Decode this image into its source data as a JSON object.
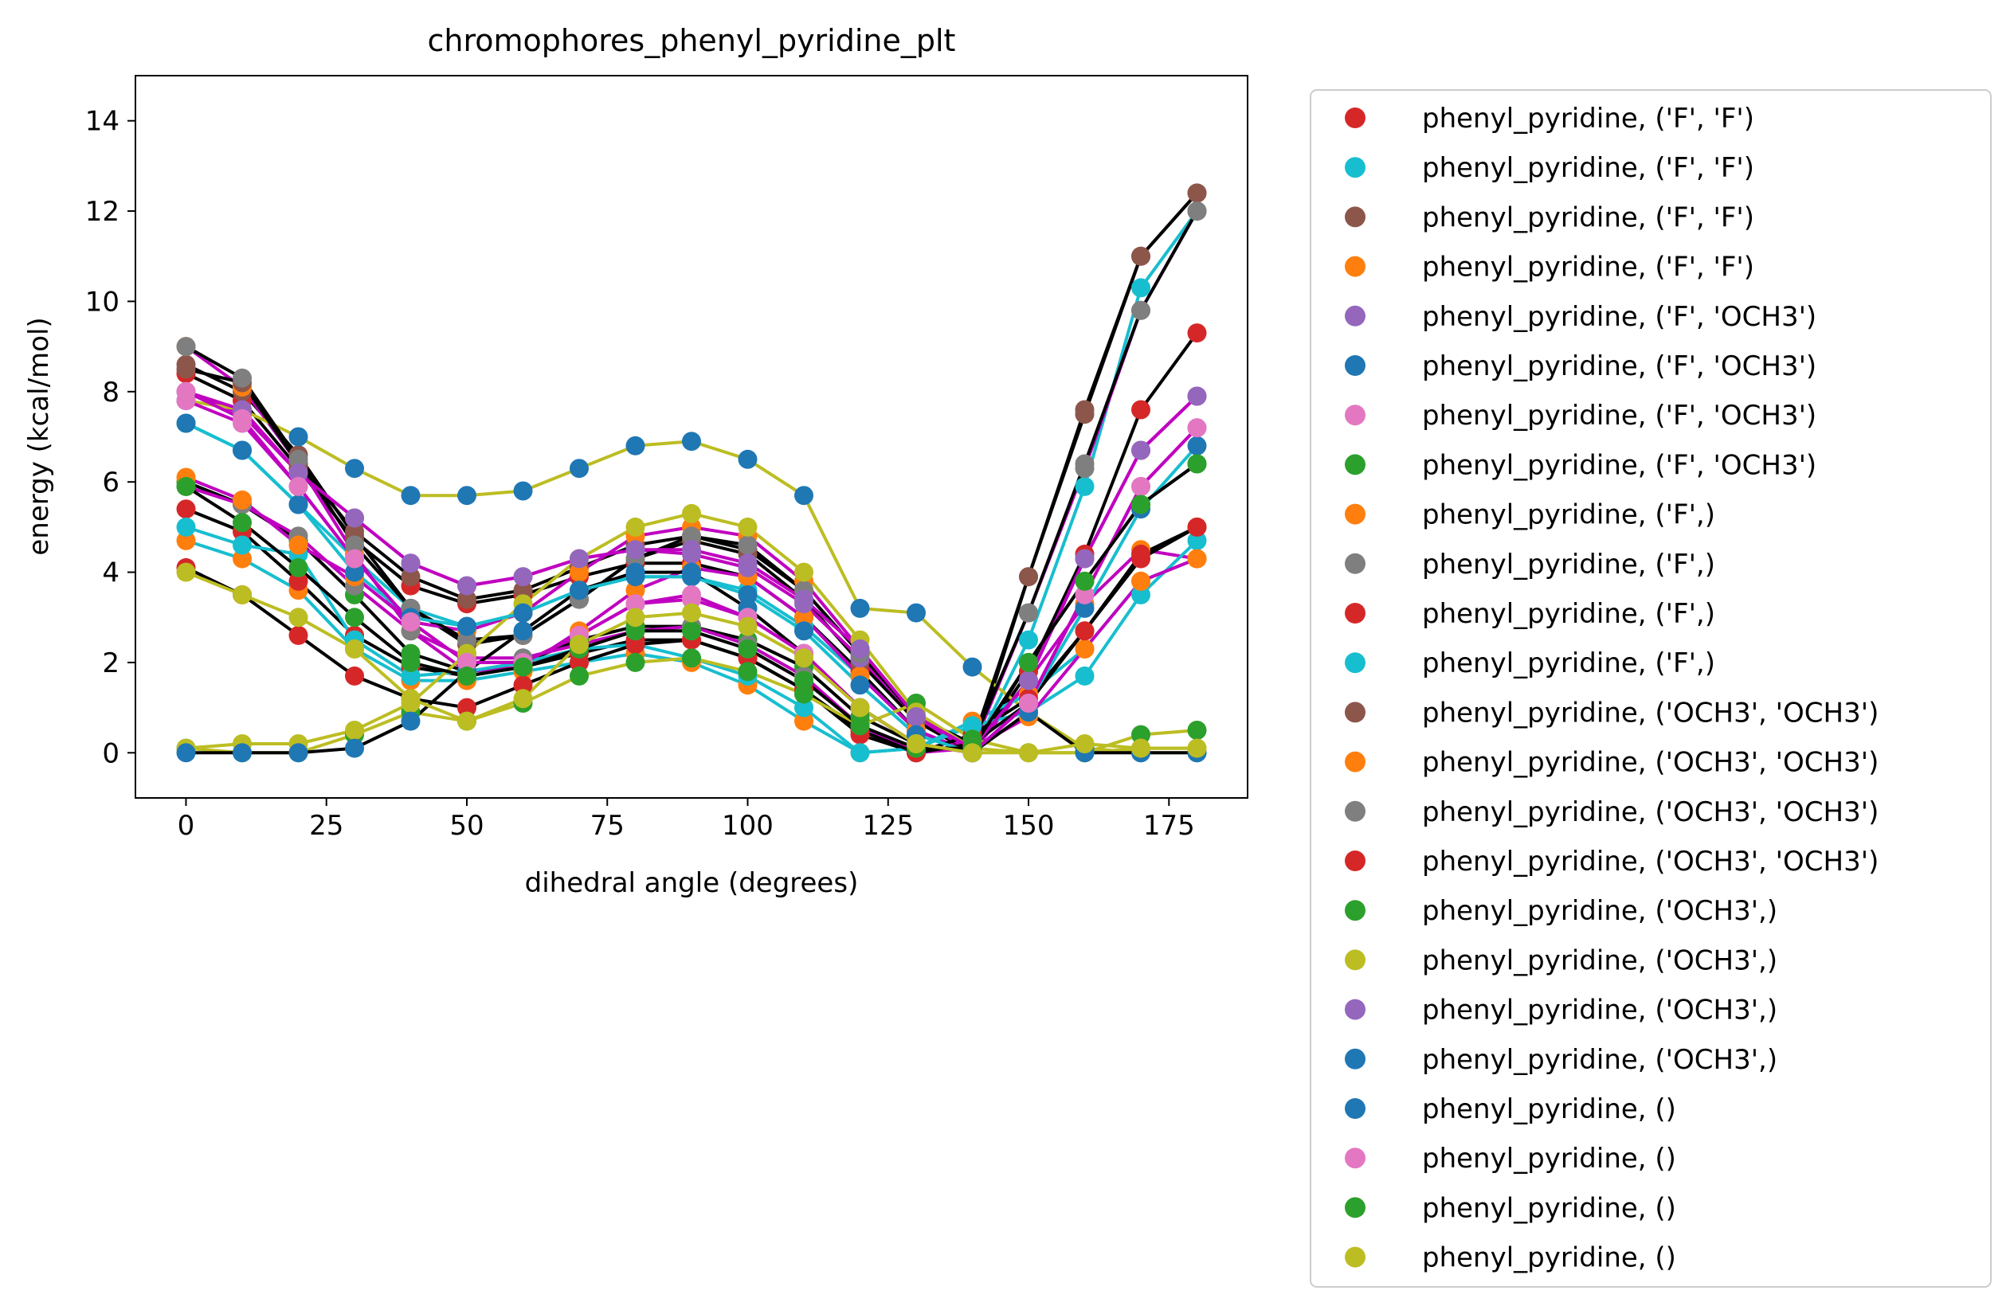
{
  "chart_data": {
    "type": "scatter",
    "title": "chromophores_phenyl_pyridine_plt",
    "xlabel": "dihedral angle (degrees)",
    "ylabel": "energy (kcal/mol)",
    "xlim": [
      -9,
      189
    ],
    "ylim": [
      -1,
      15
    ],
    "xticks": [
      0,
      25,
      50,
      75,
      100,
      125,
      150,
      175
    ],
    "yticks": [
      0,
      2,
      4,
      6,
      8,
      10,
      12,
      14
    ],
    "grid": false,
    "legend_position": "outside-right",
    "x": [
      0,
      10,
      20,
      30,
      40,
      50,
      60,
      70,
      80,
      90,
      100,
      110,
      120,
      130,
      140,
      150,
      160,
      170,
      180
    ],
    "series": [
      {
        "name": "phenyl_pyridine, ('F', 'F')",
        "color": "#d62728",
        "fit_color": "#000000",
        "values": [
          8.4,
          7.8,
          6.3,
          4.7,
          3.7,
          3.3,
          3.5,
          3.9,
          4.2,
          4.2,
          3.9,
          3.0,
          1.8,
          0.5,
          0.0,
          1.8,
          4.4,
          7.6,
          9.3
        ]
      },
      {
        "name": "phenyl_pyridine, ('F', 'F')",
        "color": "#17becf",
        "fit_color": "#17becf",
        "values": [
          7.3,
          6.7,
          5.5,
          4.3,
          3.2,
          2.8,
          3.1,
          3.6,
          3.9,
          3.9,
          3.6,
          2.8,
          1.7,
          0.5,
          0.0,
          2.5,
          5.9,
          10.3,
          12.0
        ]
      },
      {
        "name": "phenyl_pyridine, ('F', 'F')",
        "color": "#8c564b",
        "fit_color": "#000000",
        "values": [
          8.6,
          8.0,
          6.6,
          4.8,
          3.2,
          2.4,
          2.6,
          3.4,
          4.3,
          4.7,
          4.4,
          3.4,
          2.0,
          0.7,
          0.0,
          3.9,
          7.6,
          11.0,
          12.4
        ]
      },
      {
        "name": "phenyl_pyridine, ('F', 'F')",
        "color": "#ff7f0e",
        "fit_color": "#c000c0",
        "values": [
          9.0,
          8.1,
          6.4,
          4.4,
          2.7,
          1.8,
          1.9,
          2.7,
          3.6,
          4.1,
          3.9,
          3.0,
          1.7,
          0.5,
          0.0,
          1.6,
          3.3,
          4.5,
          4.3
        ]
      },
      {
        "name": "phenyl_pyridine, ('F', 'OCH3')",
        "color": "#9467bd",
        "fit_color": "#c000c0",
        "values": [
          8.0,
          7.5,
          6.2,
          5.2,
          4.2,
          3.7,
          3.9,
          4.3,
          4.5,
          4.4,
          4.1,
          3.3,
          2.1,
          0.8,
          0.0,
          1.6,
          4.3,
          6.7,
          7.9
        ]
      },
      {
        "name": "phenyl_pyridine, ('F', 'OCH3')",
        "color": "#1f77b4",
        "fit_color": "#bcbd22",
        "values": [
          7.8,
          7.6,
          7.0,
          6.3,
          5.7,
          5.7,
          5.8,
          6.3,
          6.8,
          6.9,
          6.5,
          5.7,
          3.2,
          3.1,
          1.9,
          0.9,
          0.1,
          0.0,
          0.0
        ]
      },
      {
        "name": "phenyl_pyridine, ('F', 'OCH3')",
        "color": "#e377c2",
        "fit_color": "#c000c0",
        "values": [
          7.8,
          7.3,
          5.9,
          4.3,
          2.9,
          2.0,
          2.0,
          2.6,
          3.3,
          3.4,
          3.0,
          2.2,
          1.0,
          0.2,
          0.0,
          1.1,
          3.5,
          5.9,
          7.2
        ]
      },
      {
        "name": "phenyl_pyridine, ('F', 'OCH3')",
        "color": "#2ca02c",
        "fit_color": "#000000",
        "values": [
          6.0,
          5.5,
          4.7,
          3.5,
          2.2,
          1.8,
          2.0,
          2.5,
          2.8,
          2.8,
          2.5,
          1.9,
          0.8,
          0.2,
          0.0,
          2.0,
          3.8,
          5.5,
          6.4
        ]
      },
      {
        "name": "phenyl_pyridine, ('F',)",
        "color": "#ff7f0e",
        "fit_color": "#17becf",
        "values": [
          4.7,
          4.3,
          3.6,
          2.3,
          1.6,
          1.6,
          1.8,
          2.0,
          2.2,
          2.0,
          1.5,
          0.7,
          0.0,
          0.1,
          0.7,
          1.3,
          2.3,
          3.8,
          4.3
        ]
      },
      {
        "name": "phenyl_pyridine, ('F',)",
        "color": "#7f7f7f",
        "fit_color": "#c000c0",
        "values": [
          5.9,
          5.5,
          4.8,
          3.7,
          2.7,
          2.1,
          2.1,
          2.4,
          2.7,
          2.8,
          2.4,
          1.7,
          0.6,
          0.0,
          0.1,
          3.1,
          6.3,
          9.8,
          12.0
        ]
      },
      {
        "name": "phenyl_pyridine, ('F',)",
        "color": "#d62728",
        "fit_color": "#000000",
        "values": [
          5.4,
          4.9,
          3.8,
          2.6,
          1.9,
          1.7,
          1.9,
          2.2,
          2.5,
          2.5,
          2.1,
          1.4,
          0.4,
          0.0,
          0.4,
          1.2,
          2.7,
          4.3,
          5.0
        ]
      },
      {
        "name": "phenyl_pyridine, ('F',)",
        "color": "#17becf",
        "fit_color": "#17becf",
        "values": [
          5.0,
          4.6,
          4.4,
          2.5,
          1.7,
          1.8,
          2.0,
          2.3,
          2.4,
          2.1,
          1.7,
          1.0,
          0.0,
          0.1,
          0.6,
          0.9,
          1.7,
          3.5,
          4.7
        ]
      },
      {
        "name": "phenyl_pyridine, ('OCH3', 'OCH3')",
        "color": "#8c564b",
        "fit_color": "#000000",
        "values": [
          8.5,
          8.2,
          6.4,
          4.9,
          3.9,
          3.4,
          3.6,
          4.1,
          4.6,
          4.8,
          4.5,
          3.6,
          2.2,
          0.8,
          0.2,
          3.9,
          7.5,
          11.0,
          12.4
        ]
      },
      {
        "name": "phenyl_pyridine, ('OCH3', 'OCH3')",
        "color": "#ff7f0e",
        "fit_color": "#c000c0",
        "values": [
          6.1,
          5.6,
          4.6,
          3.9,
          2.9,
          2.7,
          3.1,
          4.0,
          4.8,
          5.0,
          4.8,
          3.8,
          2.3,
          0.8,
          0.1,
          0.8,
          2.3,
          3.8,
          4.3
        ]
      },
      {
        "name": "phenyl_pyridine, ('OCH3', 'OCH3')",
        "color": "#7f7f7f",
        "fit_color": "#000000",
        "values": [
          9.0,
          8.3,
          6.5,
          4.6,
          3.2,
          2.5,
          2.6,
          3.4,
          4.3,
          4.8,
          4.6,
          3.6,
          2.2,
          0.8,
          0.2,
          3.1,
          6.4,
          9.8,
          12.0
        ]
      },
      {
        "name": "phenyl_pyridine, ('OCH3', 'OCH3')",
        "color": "#d62728",
        "fit_color": "#000000",
        "values": [
          4.1,
          3.5,
          2.6,
          1.7,
          1.2,
          1.0,
          1.5,
          2.0,
          2.4,
          2.5,
          2.1,
          1.4,
          0.5,
          0.0,
          0.2,
          1.1,
          2.7,
          4.4,
          5.0
        ]
      },
      {
        "name": "phenyl_pyridine, ('OCH3',)",
        "color": "#2ca02c",
        "fit_color": "#bcbd22",
        "values": [
          0.1,
          0.0,
          0.0,
          0.4,
          0.9,
          0.7,
          1.1,
          1.7,
          2.0,
          2.1,
          1.8,
          1.3,
          0.6,
          1.1,
          0.3,
          0.0,
          0.0,
          0.4,
          0.5
        ]
      },
      {
        "name": "phenyl_pyridine, ('OCH3',)",
        "color": "#bcbd22",
        "fit_color": "#bcbd22",
        "values": [
          0.1,
          0.2,
          0.2,
          0.5,
          1.1,
          2.2,
          3.3,
          4.3,
          5.0,
          5.3,
          5.0,
          4.0,
          2.5,
          0.9,
          0.1,
          0.0,
          0.0,
          0.1,
          0.1
        ]
      },
      {
        "name": "phenyl_pyridine, ('OCH3',)",
        "color": "#9467bd",
        "fit_color": "#c000c0",
        "values": [
          8.0,
          7.6,
          6.2,
          5.2,
          4.2,
          3.7,
          3.9,
          4.3,
          4.5,
          4.5,
          4.2,
          3.4,
          2.3,
          0.8,
          0.1,
          1.6,
          4.3,
          6.7,
          7.9
        ]
      },
      {
        "name": "phenyl_pyridine, ('OCH3',)",
        "color": "#1f77b4",
        "fit_color": "#000000",
        "values": [
          0.0,
          0.0,
          0.0,
          0.1,
          0.7,
          1.8,
          2.7,
          3.6,
          4.0,
          4.0,
          3.2,
          2.2,
          1.0,
          0.2,
          0.0,
          0.9,
          0.0,
          0.0,
          0.0
        ]
      },
      {
        "name": "phenyl_pyridine, ()",
        "color": "#1f77b4",
        "fit_color": "#17becf",
        "values": [
          7.3,
          6.7,
          5.5,
          4.0,
          3.0,
          2.8,
          3.1,
          3.6,
          3.9,
          3.9,
          3.5,
          2.7,
          1.5,
          0.4,
          0.0,
          1.1,
          3.2,
          5.4,
          6.8
        ]
      },
      {
        "name": "phenyl_pyridine, ()",
        "color": "#e377c2",
        "fit_color": "#c000c0",
        "values": [
          8.0,
          7.4,
          5.9,
          4.3,
          2.9,
          2.0,
          2.0,
          2.6,
          3.3,
          3.5,
          3.0,
          2.2,
          1.0,
          0.2,
          0.0,
          1.1,
          3.5,
          5.9,
          7.2
        ]
      },
      {
        "name": "phenyl_pyridine, ()",
        "color": "#2ca02c",
        "fit_color": "#000000",
        "values": [
          5.9,
          5.1,
          4.1,
          3.0,
          2.0,
          1.7,
          1.9,
          2.3,
          2.7,
          2.7,
          2.3,
          1.6,
          0.6,
          0.1,
          0.1,
          2.0,
          3.8,
          5.5,
          6.4
        ]
      },
      {
        "name": "phenyl_pyridine, ()",
        "color": "#bcbd22",
        "fit_color": "#bcbd22",
        "values": [
          4.0,
          3.5,
          3.0,
          2.3,
          1.2,
          0.7,
          1.2,
          2.4,
          3.0,
          3.1,
          2.8,
          2.1,
          1.0,
          0.2,
          0.0,
          0.0,
          0.2,
          0.1,
          0.1
        ]
      }
    ]
  }
}
